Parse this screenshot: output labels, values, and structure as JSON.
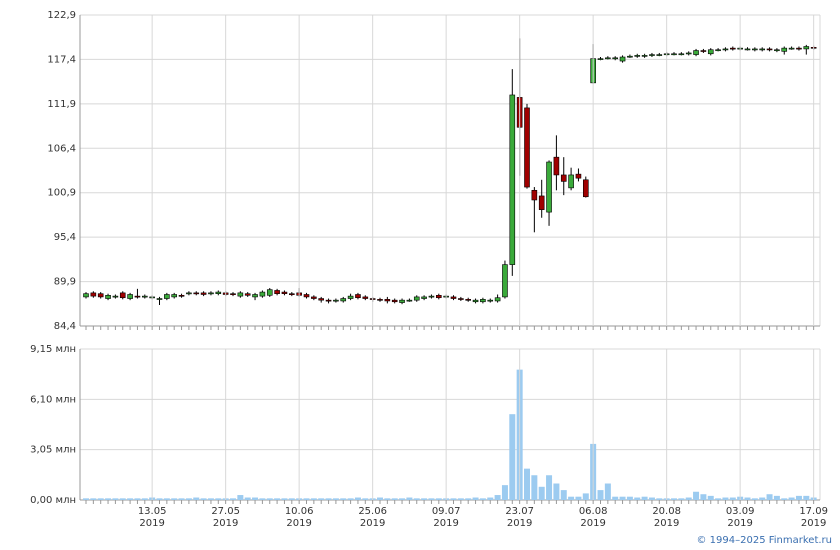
{
  "chart_data": [
    {
      "type": "candlestick",
      "open": [
        88.0,
        88.5,
        88.4,
        87.8,
        88.0,
        88.5,
        87.8,
        88.1,
        88.0,
        87.9,
        87.7,
        87.8,
        88.0,
        88.2,
        88.4,
        88.5,
        88.5,
        88.4,
        88.4,
        88.5,
        88.4,
        88.1,
        88.4,
        88.0,
        88.1,
        88.2,
        88.8,
        88.6,
        88.4,
        88.5,
        88.3,
        88.0,
        87.8,
        87.6,
        87.5,
        87.5,
        87.8,
        88.3,
        88.0,
        87.8,
        87.7,
        87.7,
        87.6,
        87.3,
        87.6,
        87.6,
        87.8,
        88.0,
        88.2,
        88.0,
        88.0,
        87.8,
        87.7,
        87.4,
        87.4,
        87.5,
        87.5,
        88.0,
        92.0,
        112.7,
        111.4,
        101.2,
        100.5,
        98.5,
        105.3,
        103.1,
        101.5,
        103.2,
        102.5,
        114.5,
        117.5,
        117.6,
        117.5,
        117.2,
        117.8,
        117.8,
        117.8,
        117.9,
        118.0,
        118.0,
        118.1,
        118.1,
        118.1,
        118.0,
        118.5,
        118.1,
        118.6,
        118.6,
        118.8,
        118.7,
        118.7,
        118.6,
        118.6,
        118.7,
        118.5,
        118.4,
        118.8,
        118.8,
        118.7,
        118.9
      ],
      "high": [
        88.6,
        88.7,
        88.6,
        88.4,
        88.3,
        88.7,
        88.5,
        89.0,
        88.3,
        88.2,
        88.0,
        88.5,
        88.5,
        88.4,
        88.7,
        88.7,
        88.7,
        88.7,
        88.8,
        88.7,
        88.6,
        88.7,
        88.6,
        88.5,
        88.8,
        89.1,
        89.0,
        88.8,
        88.6,
        89.1,
        88.5,
        88.2,
        88.0,
        87.8,
        87.8,
        88.0,
        88.4,
        88.5,
        88.2,
        88.0,
        87.9,
        88.0,
        87.8,
        87.8,
        87.8,
        88.2,
        88.2,
        88.3,
        88.4,
        88.3,
        88.2,
        88.0,
        87.9,
        87.8,
        87.9,
        87.8,
        88.3,
        92.5,
        116.2,
        120.0,
        111.9,
        101.6,
        102.5,
        104.9,
        108.0,
        105.3,
        104.0,
        103.9,
        102.9,
        119.3,
        117.7,
        117.8,
        117.8,
        117.9,
        118.0,
        118.1,
        118.1,
        118.2,
        118.2,
        118.3,
        118.3,
        118.3,
        118.4,
        118.7,
        118.7,
        118.8,
        118.8,
        118.9,
        119.0,
        119.0,
        118.9,
        118.9,
        118.9,
        118.9,
        118.8,
        119.0,
        119.0,
        119.0,
        119.2,
        119.1
      ],
      "low": [
        87.8,
        87.9,
        87.8,
        87.6,
        87.8,
        87.7,
        87.6,
        87.8,
        87.8,
        87.7,
        87.0,
        87.6,
        87.8,
        87.9,
        88.2,
        88.2,
        88.1,
        88.2,
        88.2,
        88.1,
        88.1,
        87.9,
        88.0,
        87.6,
        87.9,
        88.0,
        88.2,
        88.2,
        88.1,
        88.0,
        87.8,
        87.6,
        87.3,
        87.2,
        87.3,
        87.3,
        87.6,
        87.7,
        87.6,
        87.4,
        87.4,
        87.2,
        87.2,
        87.1,
        87.4,
        87.4,
        87.6,
        87.8,
        87.7,
        87.8,
        87.6,
        87.5,
        87.4,
        87.2,
        87.2,
        87.3,
        87.3,
        87.8,
        90.6,
        103.0,
        101.4,
        96.0,
        97.8,
        96.8,
        101.2,
        100.6,
        101.2,
        102.3,
        100.3,
        114.4,
        117.3,
        117.4,
        117.3,
        117.0,
        117.6,
        117.6,
        117.6,
        117.7,
        117.8,
        117.8,
        117.9,
        117.9,
        117.9,
        117.8,
        118.2,
        117.9,
        118.4,
        118.4,
        118.5,
        118.5,
        118.5,
        118.4,
        118.4,
        118.4,
        118.3,
        118.0,
        118.6,
        118.5,
        118.0,
        118.6
      ],
      "close": [
        88.4,
        88.1,
        88.0,
        88.2,
        88.1,
        87.9,
        88.3,
        88.0,
        88.1,
        88.0,
        87.8,
        88.3,
        88.3,
        88.1,
        88.5,
        88.4,
        88.3,
        88.5,
        88.6,
        88.3,
        88.3,
        88.5,
        88.2,
        88.3,
        88.6,
        88.9,
        88.4,
        88.4,
        88.3,
        88.2,
        88.0,
        87.8,
        87.6,
        87.5,
        87.6,
        87.8,
        88.1,
        87.9,
        87.8,
        87.7,
        87.6,
        87.5,
        87.4,
        87.6,
        87.6,
        88.0,
        88.0,
        88.1,
        87.9,
        88.1,
        87.8,
        87.7,
        87.6,
        87.6,
        87.7,
        87.6,
        87.9,
        92.0,
        113.0,
        109.0,
        101.6,
        100.0,
        98.8,
        104.7,
        103.1,
        102.3,
        103.1,
        102.7,
        100.4,
        117.5,
        117.5,
        117.6,
        117.6,
        117.7,
        117.8,
        117.9,
        117.9,
        118.0,
        118.0,
        118.1,
        118.1,
        118.1,
        118.2,
        118.5,
        118.4,
        118.6,
        118.6,
        118.7,
        118.7,
        118.8,
        118.7,
        118.7,
        118.7,
        118.6,
        118.6,
        118.8,
        118.8,
        118.7,
        119.0,
        118.8
      ],
      "up_color": "#3aaa3a",
      "down_color": "#a00000",
      "ylim": [
        84.4,
        122.9
      ],
      "yticks": [
        {
          "value": 84.4,
          "label": "84,4"
        },
        {
          "value": 89.9,
          "label": "89,9"
        },
        {
          "value": 95.4,
          "label": "95,4"
        },
        {
          "value": 100.9,
          "label": "100,9"
        },
        {
          "value": 106.4,
          "label": "106,4"
        },
        {
          "value": 111.9,
          "label": "111,9"
        },
        {
          "value": 117.4,
          "label": "117,4"
        },
        {
          "value": 122.9,
          "label": "122,9"
        }
      ],
      "grid": true
    },
    {
      "type": "bar",
      "categories": [
        null,
        null,
        null,
        null,
        null,
        null,
        null,
        null,
        null,
        "13.05\n2019",
        null,
        null,
        null,
        null,
        null,
        null,
        null,
        null,
        null,
        "27.05\n2019",
        null,
        null,
        null,
        null,
        null,
        null,
        null,
        null,
        null,
        "10.06\n2019",
        null,
        null,
        null,
        null,
        null,
        null,
        null,
        null,
        null,
        "25.06\n2019",
        null,
        null,
        null,
        null,
        null,
        null,
        null,
        null,
        null,
        "09.07\n2019",
        null,
        null,
        null,
        null,
        null,
        null,
        null,
        null,
        null,
        "23.07\n2019",
        null,
        null,
        null,
        null,
        null,
        null,
        null,
        null,
        null,
        "06.08\n2019",
        null,
        null,
        null,
        null,
        null,
        null,
        null,
        null,
        null,
        "20.08\n2019",
        null,
        null,
        null,
        null,
        null,
        null,
        null,
        null,
        null,
        "03.09\n2019",
        null,
        null,
        null,
        null,
        null,
        null,
        null,
        null,
        null,
        "17.09\n2019"
      ],
      "values": [
        0.1,
        0.1,
        0.1,
        0.1,
        0.1,
        0.1,
        0.1,
        0.1,
        0.1,
        0.15,
        0.1,
        0.1,
        0.1,
        0.1,
        0.1,
        0.15,
        0.1,
        0.1,
        0.1,
        0.1,
        0.1,
        0.3,
        0.15,
        0.15,
        0.1,
        0.1,
        0.1,
        0.1,
        0.1,
        0.1,
        0.1,
        0.1,
        0.1,
        0.1,
        0.1,
        0.1,
        0.1,
        0.15,
        0.1,
        0.1,
        0.15,
        0.1,
        0.1,
        0.1,
        0.15,
        0.1,
        0.1,
        0.1,
        0.1,
        0.1,
        0.1,
        0.1,
        0.1,
        0.15,
        0.1,
        0.15,
        0.3,
        0.9,
        5.2,
        7.9,
        1.9,
        1.5,
        0.8,
        1.5,
        1.0,
        0.6,
        0.2,
        0.2,
        0.4,
        3.4,
        0.6,
        1.0,
        0.2,
        0.2,
        0.2,
        0.15,
        0.2,
        0.15,
        0.1,
        0.1,
        0.1,
        0.1,
        0.15,
        0.5,
        0.35,
        0.25,
        0.1,
        0.15,
        0.15,
        0.2,
        0.15,
        0.1,
        0.15,
        0.35,
        0.25,
        0.1,
        0.15,
        0.25,
        0.25,
        0.15
      ],
      "color": "#9ccbf0",
      "ylim": [
        0,
        9.15
      ],
      "yticks": [
        {
          "value": 0,
          "label": "0,00 млн"
        },
        {
          "value": 3.05,
          "label": "3,05 млн"
        },
        {
          "value": 6.1,
          "label": "6,10 млн"
        },
        {
          "value": 9.15,
          "label": "9,15 млн"
        }
      ],
      "grid": true
    }
  ],
  "footer": "© 1994–2025 Finmarket.ru"
}
